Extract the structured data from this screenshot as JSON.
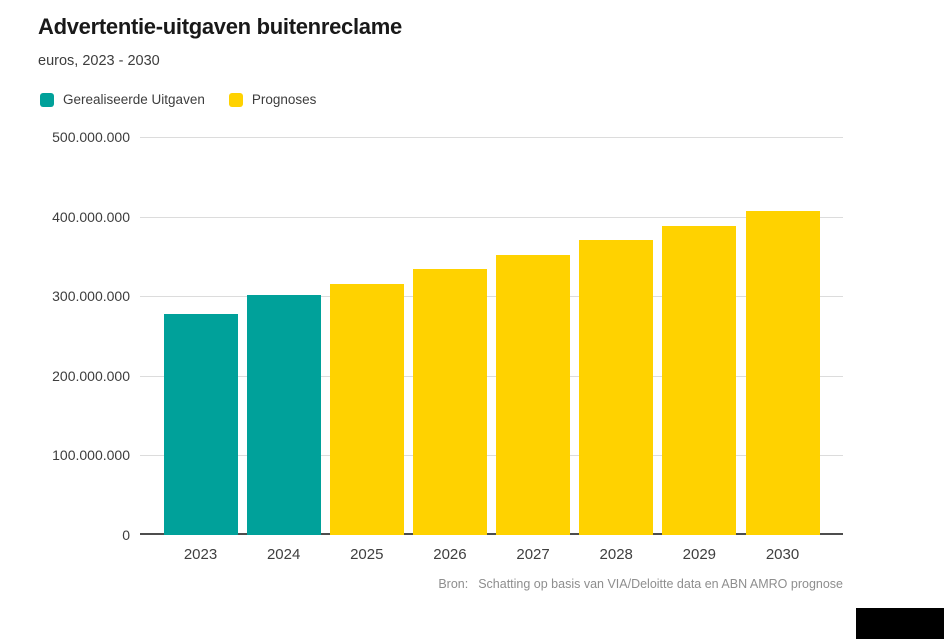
{
  "header": {
    "title": "Advertentie-uitgaven buitenreclame",
    "subtitle": "euros, 2023 - 2030"
  },
  "legend": {
    "items": [
      {
        "label": "Gerealiseerde Uitgaven",
        "color": "#00A19A"
      },
      {
        "label": "Prognoses",
        "color": "#FFD200"
      }
    ]
  },
  "source": {
    "prefix": "Bron:",
    "text": "Schatting op basis van VIA/Deloitte data en ABN AMRO prognose"
  },
  "colors": {
    "realized": "#00A19A",
    "forecast": "#FFD200",
    "gridline": "#dcdcdc",
    "axis_line": "#4d4d4d",
    "title_text": "#191919",
    "label_text": "#3d3d3d",
    "source_text": "#8e8e8e",
    "redaction": "#000000"
  },
  "chart_data": {
    "type": "bar",
    "title": "Advertentie-uitgaven buitenreclame",
    "subtitle": "euros, 2023 - 2030",
    "categories": [
      "2023",
      "2024",
      "2025",
      "2026",
      "2027",
      "2028",
      "2029",
      "2030"
    ],
    "values": [
      278000000,
      302000000,
      315000000,
      334000000,
      352000000,
      370000000,
      388000000,
      407000000
    ],
    "point_series": [
      "Gerealiseerde Uitgaven",
      "Gerealiseerde Uitgaven",
      "Prognoses",
      "Prognoses",
      "Prognoses",
      "Prognoses",
      "Prognoses",
      "Prognoses"
    ],
    "series": [
      {
        "name": "Gerealiseerde Uitgaven",
        "color": "#00A19A",
        "categories": [
          "2023",
          "2024"
        ],
        "values": [
          278000000,
          302000000
        ]
      },
      {
        "name": "Prognoses",
        "color": "#FFD200",
        "categories": [
          "2025",
          "2026",
          "2027",
          "2028",
          "2029",
          "2030"
        ],
        "values": [
          315000000,
          334000000,
          352000000,
          370000000,
          388000000,
          407000000
        ]
      }
    ],
    "xlabel": "",
    "ylabel": "euros",
    "ylim": [
      0,
      500000000
    ],
    "yticks": [
      0,
      100000000,
      200000000,
      300000000,
      400000000,
      500000000
    ],
    "ytick_labels": [
      "0",
      "100.000.000",
      "200.000.000",
      "300.000.000",
      "400.000.000",
      "500.000.000"
    ],
    "grid": true,
    "legend_position": "top-left"
  }
}
